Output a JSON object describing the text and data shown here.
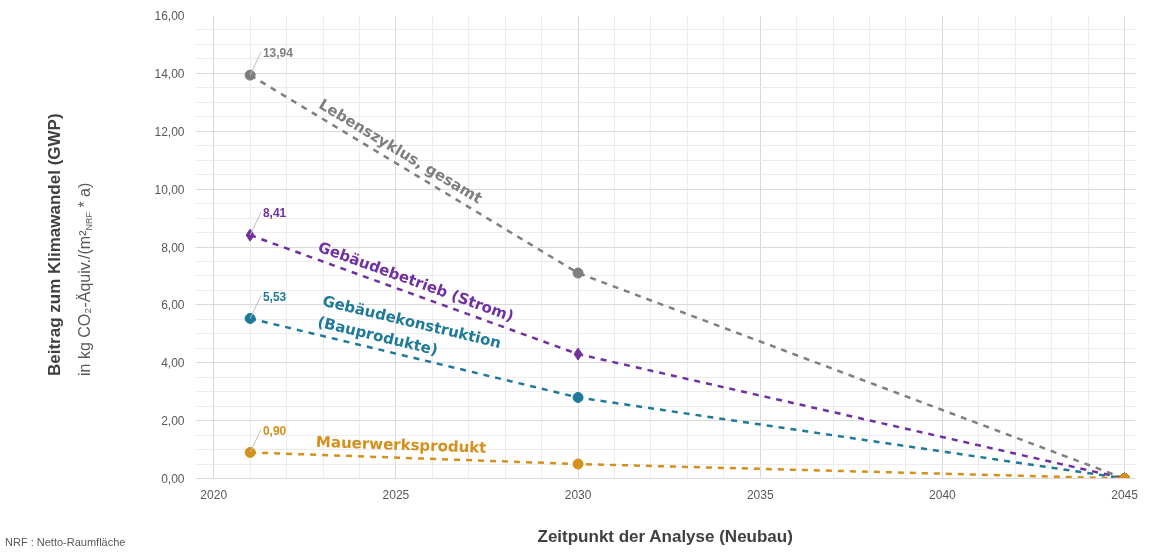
{
  "chart_data": {
    "type": "line",
    "xlabel": "Zeitpunkt der Analyse (Neubau)",
    "ylabel": "Beitrag zum Klimawandel (GWP)\nin kg CO₂-Äquiv./(m²$_{NRF}$ * a)",
    "x": [
      2021,
      2030,
      2045
    ],
    "series": [
      {
        "name": "Lebenszyklus, gesamt",
        "color": "#7f7f7f",
        "marker": "circle",
        "values": [
          13.94,
          7.1,
          0
        ],
        "value_labels": [
          "13,94",
          null,
          null
        ]
      },
      {
        "name": "Gebäudebetrieb (Strom)",
        "color": "#7030a0",
        "marker": "diamond",
        "values": [
          8.41,
          4.3,
          0
        ],
        "value_labels": [
          "8,41",
          null,
          null
        ]
      },
      {
        "name": "Gebäudekonstruktion\n(Bauprodukte)",
        "color": "#1f7a9a",
        "marker": "circle",
        "values": [
          5.53,
          2.8,
          0
        ],
        "value_labels": [
          "5,53",
          null,
          null
        ]
      },
      {
        "name": "Mauerwerksprodukt",
        "color": "#d4901a",
        "marker": "circle",
        "values": [
          0.9,
          0.5,
          0
        ],
        "value_labels": [
          "0,90",
          null,
          null
        ]
      }
    ],
    "xlim": [
      2019.5,
      2045.3
    ],
    "xticks": [
      2020,
      2025,
      2030,
      2035,
      2040,
      2045
    ],
    "ylim": [
      0,
      16
    ],
    "yticks": [
      {
        "value": 0,
        "label": "0,00"
      },
      {
        "value": 2,
        "label": "2,00"
      },
      {
        "value": 4,
        "label": "4,00"
      },
      {
        "value": 6,
        "label": "6,00"
      },
      {
        "value": 8,
        "label": "8,00"
      },
      {
        "value": 10,
        "label": "10,00"
      },
      {
        "value": 12,
        "label": "12,00"
      },
      {
        "value": 14,
        "label": "14,00"
      },
      {
        "value": 16,
        "label": "16,00"
      }
    ],
    "grid": true,
    "legend": false,
    "line_style": "dashed",
    "annotations": [
      "NRF : Netto-Raumfläche"
    ]
  }
}
